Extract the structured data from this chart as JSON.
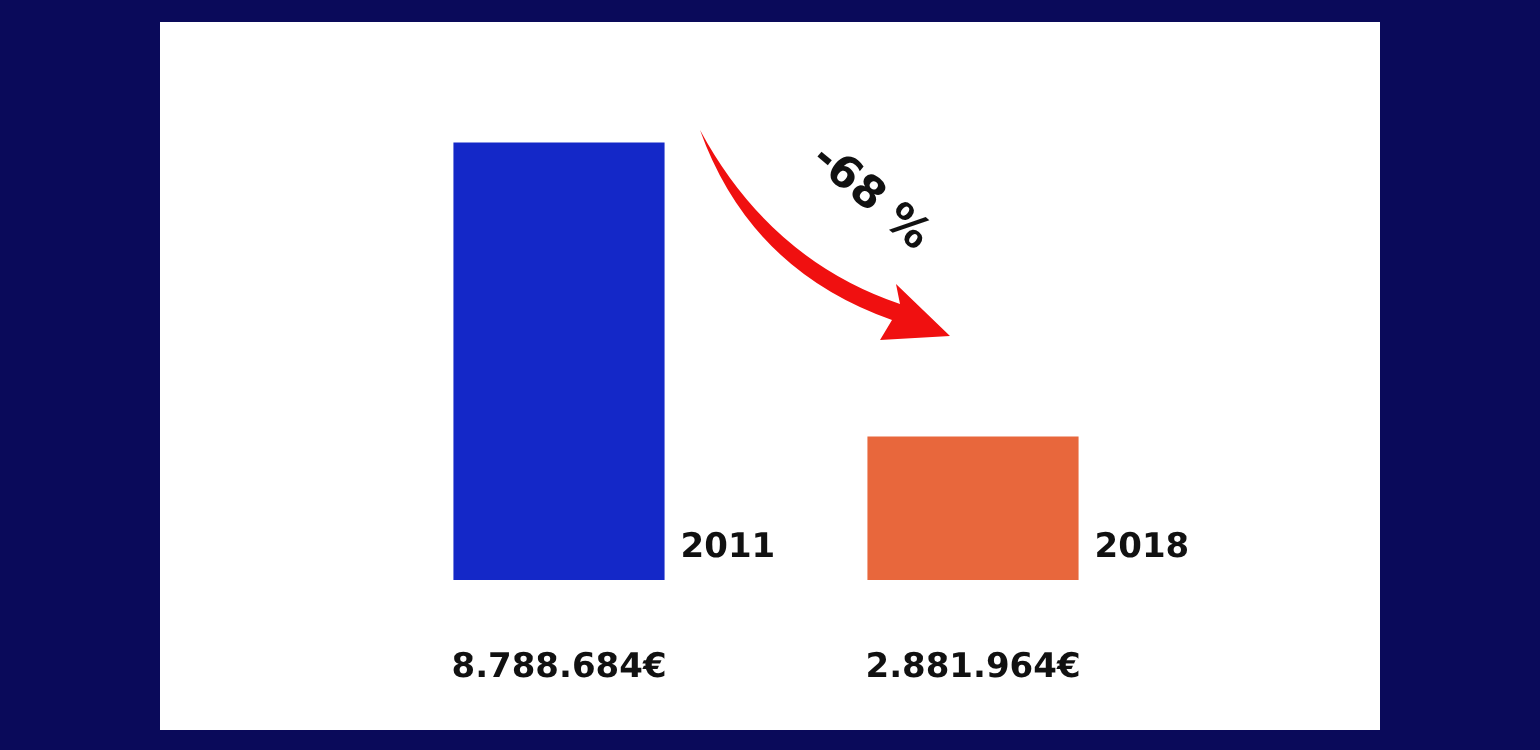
{
  "chart_data": {
    "type": "bar",
    "categories": [
      "2011",
      "2018"
    ],
    "values": [
      8788684,
      2881964
    ],
    "colors": [
      "#1428c8",
      "#e8673c"
    ],
    "value_labels": [
      "8.788.684€",
      "2.881.964€"
    ],
    "annotations": [
      "-68 %"
    ]
  }
}
